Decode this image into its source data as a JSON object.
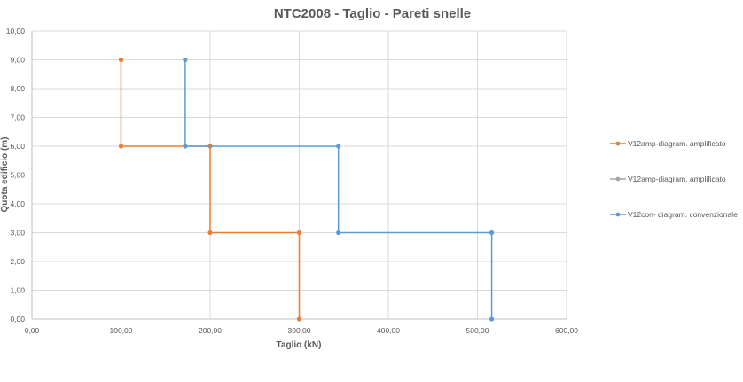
{
  "chart_data": {
    "type": "line",
    "title": "NTC2008 - Taglio - Pareti snelle",
    "xlabel": "Taglio (kN)",
    "ylabel": "Quota edificio (m)",
    "xlim": [
      0,
      600
    ],
    "ylim": [
      0,
      10
    ],
    "x_ticks": [
      "0,00",
      "100,00",
      "200,00",
      "300,00",
      "400,00",
      "500,00",
      "600,00"
    ],
    "y_ticks": [
      "0,00",
      "1,00",
      "2,00",
      "3,00",
      "4,00",
      "5,00",
      "6,00",
      "7,00",
      "8,00",
      "9,00",
      "10,00"
    ],
    "grid": true,
    "legend_position": "right",
    "series": [
      {
        "name": "V12amp-diagram. amplificato",
        "color": "#ED7D31",
        "points": [
          [
            300,
            0
          ],
          [
            300,
            3
          ],
          [
            200,
            3
          ],
          [
            200,
            6
          ],
          [
            100,
            6
          ],
          [
            100,
            9
          ]
        ]
      },
      {
        "name": "V12amp-diagram. amplificato",
        "color": "#A5A5A5",
        "points": []
      },
      {
        "name": "V12con- diagram. convenzionale",
        "color": "#5B9BD5",
        "points": [
          [
            516,
            0
          ],
          [
            516,
            3
          ],
          [
            344,
            3
          ],
          [
            344,
            6
          ],
          [
            172,
            6
          ],
          [
            172,
            9
          ]
        ]
      }
    ]
  }
}
